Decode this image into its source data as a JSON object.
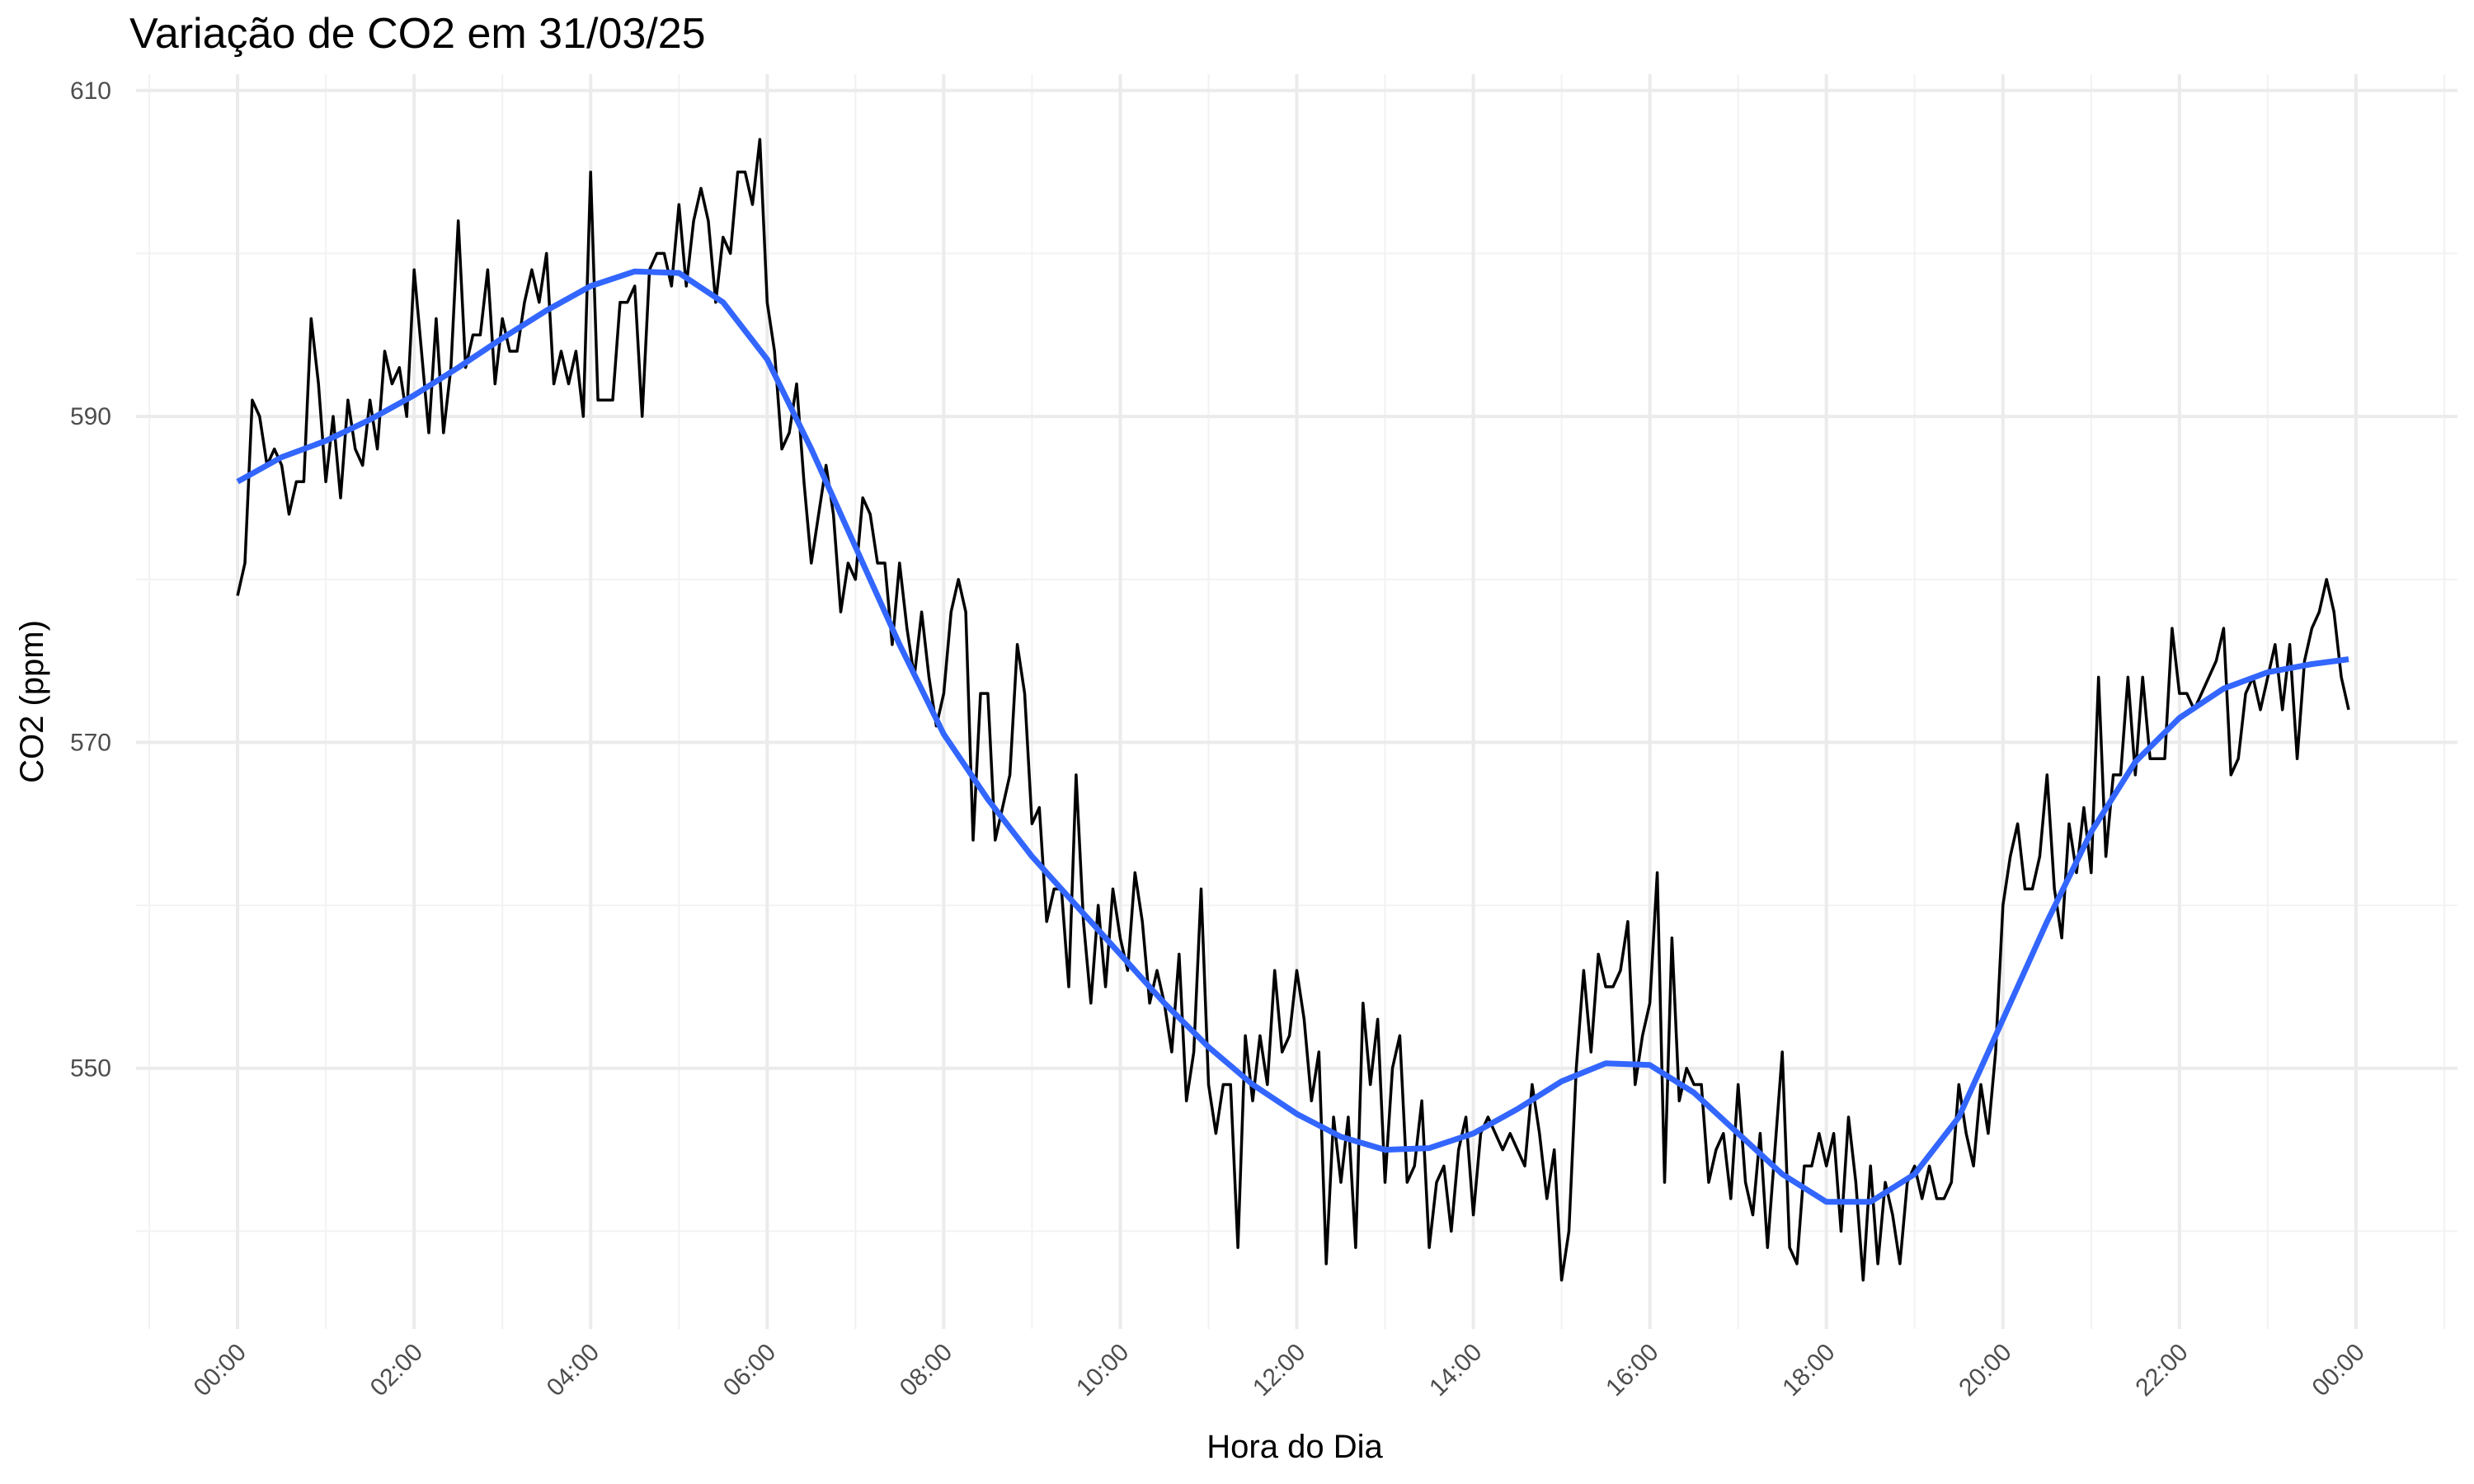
{
  "chart_data": {
    "type": "line",
    "title": "Variação de CO2 em 31/03/25",
    "x_label": "Hora do Dia",
    "y_label": "CO2 (ppm)",
    "x": [
      0,
      5,
      10,
      15,
      20,
      25,
      30,
      35,
      40,
      45,
      50,
      55,
      60,
      65,
      70,
      75,
      80,
      85,
      90,
      95,
      100,
      105,
      110,
      115,
      120,
      125,
      130,
      135,
      140,
      145,
      150,
      155,
      160,
      165,
      170,
      175,
      180,
      185,
      190,
      195,
      200,
      205,
      210,
      215,
      220,
      225,
      230,
      235,
      240,
      245,
      250,
      255,
      260,
      265,
      270,
      275,
      280,
      285,
      290,
      295,
      300,
      305,
      310,
      315,
      320,
      325,
      330,
      335,
      340,
      345,
      350,
      355,
      360,
      365,
      370,
      375,
      380,
      385,
      390,
      395,
      400,
      405,
      410,
      415,
      420,
      425,
      430,
      435,
      440,
      445,
      450,
      455,
      460,
      465,
      470,
      475,
      480,
      485,
      490,
      495,
      500,
      505,
      510,
      515,
      520,
      525,
      530,
      535,
      540,
      545,
      550,
      555,
      560,
      565,
      570,
      575,
      580,
      585,
      590,
      595,
      600,
      605,
      610,
      615,
      620,
      625,
      630,
      635,
      640,
      645,
      650,
      655,
      660,
      665,
      670,
      675,
      680,
      685,
      690,
      695,
      700,
      705,
      710,
      715,
      720,
      725,
      730,
      735,
      740,
      745,
      750,
      755,
      760,
      765,
      770,
      775,
      780,
      785,
      790,
      795,
      800,
      805,
      810,
      815,
      820,
      825,
      830,
      835,
      840,
      845,
      850,
      855,
      860,
      865,
      870,
      875,
      880,
      885,
      890,
      895,
      900,
      905,
      910,
      915,
      920,
      925,
      930,
      935,
      940,
      945,
      950,
      955,
      960,
      965,
      970,
      975,
      980,
      985,
      990,
      995,
      1000,
      1005,
      1010,
      1015,
      1020,
      1025,
      1030,
      1035,
      1040,
      1045,
      1050,
      1055,
      1060,
      1065,
      1070,
      1075,
      1080,
      1085,
      1090,
      1095,
      1100,
      1105,
      1110,
      1115,
      1120,
      1125,
      1130,
      1135,
      1140,
      1145,
      1150,
      1155,
      1160,
      1165,
      1170,
      1175,
      1180,
      1185,
      1190,
      1195,
      1200,
      1205,
      1210,
      1215,
      1220,
      1225,
      1230,
      1235,
      1240,
      1245,
      1250,
      1255,
      1260,
      1265,
      1270,
      1275,
      1280,
      1285,
      1290,
      1295,
      1300,
      1305,
      1310,
      1315,
      1320,
      1325,
      1330,
      1335,
      1340,
      1345,
      1350,
      1355,
      1360,
      1365,
      1370,
      1375,
      1380,
      1385,
      1390,
      1395,
      1400,
      1405,
      1410,
      1415,
      1420,
      1425,
      1430,
      1435
    ],
    "series": [
      {
        "color": "#000000",
        "values": [
          579,
          581,
          591,
          590,
          587,
          588,
          587,
          584,
          586,
          586,
          596,
          592,
          586,
          590,
          585,
          591,
          588,
          587,
          591,
          588,
          594,
          592,
          593,
          590,
          599,
          594,
          589,
          596,
          589,
          593,
          602,
          593,
          595,
          595,
          599,
          592,
          596,
          594,
          594,
          597,
          599,
          597,
          600,
          592,
          594,
          592,
          594,
          590,
          605,
          591,
          591,
          591,
          597,
          597,
          598,
          590,
          599,
          600,
          600,
          598,
          603,
          598,
          602,
          604,
          602,
          597,
          601,
          600,
          605,
          605,
          603,
          607,
          597,
          594,
          588,
          589,
          592,
          586,
          581,
          584,
          587,
          584,
          578,
          581,
          580,
          585,
          584,
          581,
          581,
          576,
          581,
          577,
          574,
          578,
          574,
          571,
          573,
          578,
          580,
          578,
          564,
          573,
          573,
          564,
          566,
          568,
          576,
          573,
          565,
          566,
          559,
          561,
          561,
          555,
          568,
          559,
          554,
          560,
          555,
          561,
          558,
          556,
          562,
          559,
          554,
          556,
          554,
          551,
          557,
          548,
          551,
          561,
          549,
          546,
          549,
          549,
          539,
          552,
          548,
          552,
          549,
          556,
          551,
          552,
          556,
          553,
          548,
          551,
          538,
          547,
          543,
          547,
          539,
          554,
          549,
          553,
          543,
          550,
          552,
          543,
          544,
          548,
          539,
          543,
          544,
          540,
          545,
          547,
          541,
          546,
          547,
          546,
          545,
          546,
          545,
          544,
          549,
          546,
          542,
          545,
          537,
          540,
          550,
          556,
          551,
          557,
          555,
          555,
          556,
          559,
          549,
          552,
          554,
          562,
          543,
          558,
          548,
          550,
          549,
          549,
          543,
          545,
          546,
          542,
          549,
          543,
          541,
          546,
          539,
          545,
          551,
          539,
          538,
          544,
          544,
          546,
          544,
          546,
          540,
          547,
          543,
          537,
          544,
          538,
          543,
          541,
          538,
          543,
          544,
          542,
          544,
          542,
          542,
          543,
          549,
          546,
          544,
          549,
          546,
          551,
          560,
          563,
          565,
          561,
          561,
          563,
          568,
          561,
          558,
          565,
          562,
          566,
          562,
          574,
          563,
          568,
          568,
          574,
          568,
          574,
          569,
          569,
          569,
          577,
          573,
          573,
          572,
          573,
          574,
          575,
          577,
          568,
          569,
          573,
          574,
          572,
          574,
          576,
          572,
          576,
          569,
          575,
          577,
          578,
          580,
          578,
          574,
          572
        ]
      },
      {
        "color": "#3366ff",
        "x": [
          0,
          30,
          60,
          90,
          120,
          150,
          180,
          210,
          240,
          270,
          300,
          330,
          360,
          390,
          420,
          450,
          480,
          510,
          540,
          570,
          600,
          630,
          660,
          690,
          720,
          750,
          780,
          810,
          840,
          870,
          900,
          930,
          960,
          990,
          1020,
          1050,
          1080,
          1110,
          1140,
          1170,
          1200,
          1230,
          1260,
          1290,
          1320,
          1350,
          1380,
          1410,
          1435
        ],
        "values": [
          586,
          587.5,
          588.5,
          589.8,
          591.3,
          593,
          594.8,
          596.5,
          598,
          598.9,
          598.8,
          597,
          593.5,
          588,
          582,
          576,
          570.5,
          566.5,
          563,
          560,
          557,
          554,
          551.3,
          549,
          547.2,
          545.8,
          545,
          545.1,
          546,
          547.5,
          549.2,
          550.3,
          550.2,
          548.5,
          546,
          543.5,
          541.8,
          541.8,
          543.5,
          547,
          553,
          559,
          564.5,
          568.8,
          571.5,
          573.3,
          574.3,
          574.8,
          575.1
        ]
      }
    ],
    "xlim": [
      -69,
      1509
    ],
    "ylim": [
      534,
      611
    ],
    "xticks": [
      {
        "value": 0,
        "label": "00:00"
      },
      {
        "value": 120,
        "label": "02:00"
      },
      {
        "value": 240,
        "label": "04:00"
      },
      {
        "value": 360,
        "label": "06:00"
      },
      {
        "value": 480,
        "label": "08:00"
      },
      {
        "value": 600,
        "label": "10:00"
      },
      {
        "value": 720,
        "label": "12:00"
      },
      {
        "value": 840,
        "label": "14:00"
      },
      {
        "value": 960,
        "label": "16:00"
      },
      {
        "value": 1080,
        "label": "18:00"
      },
      {
        "value": 1200,
        "label": "20:00"
      },
      {
        "value": 1320,
        "label": "22:00"
      },
      {
        "value": 1440,
        "label": "00:00"
      }
    ],
    "yticks": [
      550,
      570,
      590,
      610
    ],
    "grid": true
  }
}
